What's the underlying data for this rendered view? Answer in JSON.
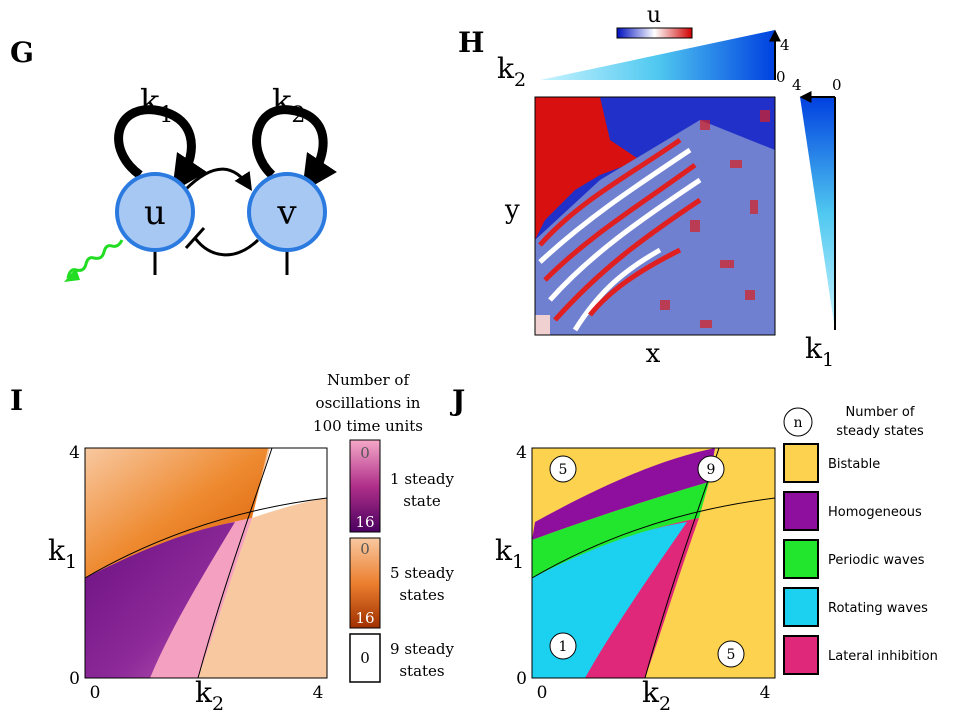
{
  "panel_g": {
    "letter": "G",
    "k1": {
      "symbol": "k",
      "subscript": "1"
    },
    "k2": {
      "symbol": "k",
      "subscript": "2"
    },
    "node_u": "u",
    "node_v": "v"
  },
  "panel_h": {
    "letter": "H",
    "colorbar_label": "u",
    "k2": {
      "symbol": "k",
      "subscript": "2"
    },
    "k2_ticks": [
      4,
      0
    ],
    "k1_ticks": [
      4,
      0
    ],
    "y_label": "y",
    "x_label": "x",
    "k1": {
      "symbol": "k",
      "subscript": "1"
    }
  },
  "panel_i": {
    "letter": "I",
    "legend_title": [
      "Number of",
      "oscillations in",
      "100 time units"
    ],
    "legend": [
      {
        "label": [
          "1 steady",
          "state"
        ],
        "ticks": [
          0,
          16
        ]
      },
      {
        "label": [
          "5 steady",
          "states"
        ],
        "ticks": [
          0,
          16
        ]
      },
      {
        "label": [
          "9 steady",
          "states"
        ],
        "ticks": [
          0
        ]
      }
    ],
    "x_ticks": [
      0,
      4
    ],
    "y_ticks": [
      4,
      0
    ],
    "x_label": {
      "symbol": "k",
      "subscript": "2"
    },
    "y_label": {
      "symbol": "k",
      "subscript": "1"
    }
  },
  "panel_j": {
    "letter": "J",
    "legend_symbol": "n",
    "legend_title": [
      "Number of",
      "steady states"
    ],
    "legend": [
      "Bistable",
      "Homogeneous",
      "Periodic waves",
      "Rotating waves",
      "Lateral inhibition"
    ],
    "region_counts": [
      5,
      9,
      1,
      5
    ],
    "x_ticks": [
      0,
      4
    ],
    "y_ticks": [
      4,
      0
    ],
    "x_label": {
      "symbol": "k",
      "subscript": "2"
    },
    "y_label": {
      "symbol": "k",
      "subscript": "1"
    }
  }
}
